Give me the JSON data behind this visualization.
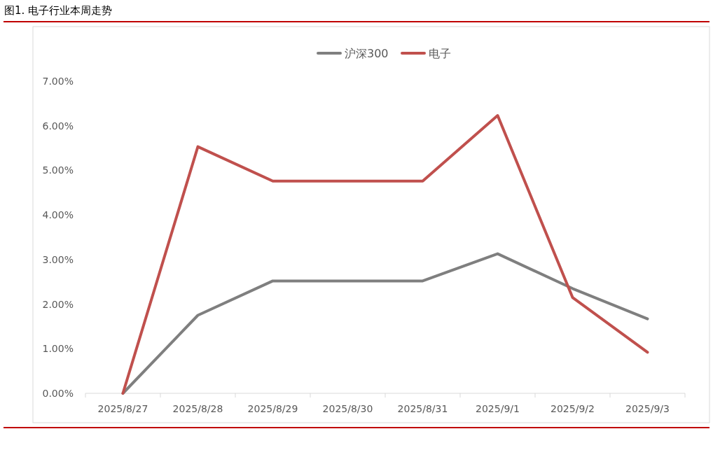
{
  "chart_data": {
    "type": "line",
    "title": "图1. 电子行业本周走势",
    "categories": [
      "2025/8/27",
      "2025/8/28",
      "2025/8/29",
      "2025/8/30",
      "2025/8/31",
      "2025/9/1",
      "2025/9/2",
      "2025/9/3"
    ],
    "series": [
      {
        "name": "沪深300",
        "color": "#7f7f7f",
        "values": [
          0,
          1.75,
          2.52,
          2.52,
          2.52,
          3.13,
          2.35,
          1.67
        ]
      },
      {
        "name": "电子",
        "color": "#c0504d",
        "values": [
          0,
          5.53,
          4.76,
          4.76,
          4.76,
          6.23,
          2.15,
          0.92
        ]
      }
    ],
    "ylim": [
      0,
      7
    ],
    "yticks": [
      {
        "value": 0,
        "label": "0.00%"
      },
      {
        "value": 1,
        "label": "1.00%"
      },
      {
        "value": 2,
        "label": "2.00%"
      },
      {
        "value": 3,
        "label": "3.00%"
      },
      {
        "value": 4,
        "label": "4.00%"
      },
      {
        "value": 5,
        "label": "5.00%"
      },
      {
        "value": 6,
        "label": "6.00%"
      },
      {
        "value": 7,
        "label": "7.00%"
      }
    ],
    "legend": "top",
    "grid": false,
    "marker": "none",
    "line_style": "solid"
  }
}
